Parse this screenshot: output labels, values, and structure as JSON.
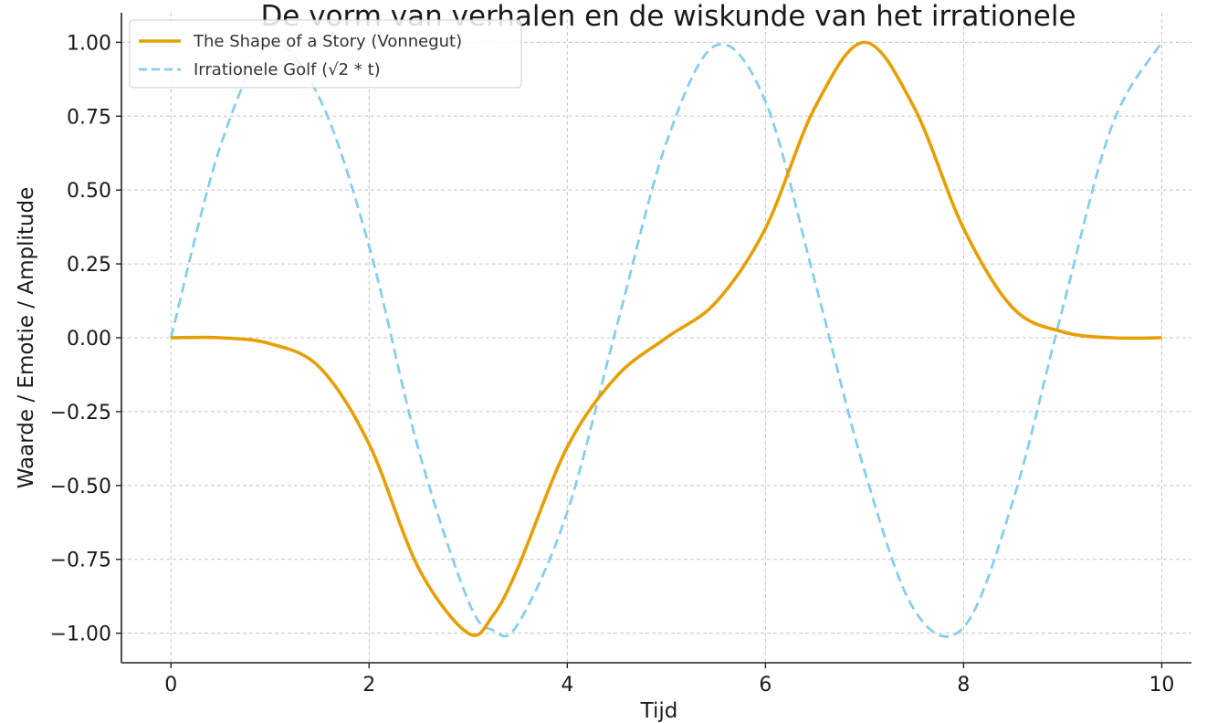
{
  "chart_data": {
    "type": "line",
    "title": "De vorm van verhalen en de wiskunde van het irrationele",
    "xlabel": "Tijd",
    "ylabel": "Waarde / Emotie / Amplitude",
    "xlim": [
      -0.5,
      10.3
    ],
    "ylim": [
      -1.1,
      1.1
    ],
    "xticks": [
      0,
      2,
      4,
      6,
      8,
      10
    ],
    "xtick_labels": [
      "0",
      "2",
      "4",
      "6",
      "8",
      "10"
    ],
    "yticks": [
      -1.0,
      -0.75,
      -0.5,
      -0.25,
      0.0,
      0.25,
      0.5,
      0.75,
      1.0
    ],
    "ytick_labels": [
      "−1.00",
      "−0.75",
      "−0.50",
      "−0.25",
      "0.00",
      "0.25",
      "0.50",
      "0.75",
      "1.00"
    ],
    "grid": true,
    "legend_position": "top-left",
    "x": [
      0,
      0.5,
      1,
      1.5,
      2,
      2.5,
      3,
      3.25,
      3.5,
      4,
      4.5,
      5,
      5.5,
      6,
      6.5,
      7,
      7.5,
      8,
      8.5,
      9,
      9.5,
      10
    ],
    "series": [
      {
        "name": "The Shape of a Story (Vonnegut)",
        "color": "#e69f00",
        "style": "solid",
        "values": [
          0,
          0,
          -0.02,
          -0.1,
          -0.36,
          -0.78,
          -1.0,
          -0.94,
          -0.78,
          -0.37,
          -0.13,
          0.0,
          0.12,
          0.37,
          0.78,
          1.0,
          0.78,
          0.37,
          0.1,
          0.02,
          0,
          0
        ]
      },
      {
        "name": "Irrationele Golf (√2 * t)",
        "color": "#87ceeb",
        "style": "dashed",
        "values": [
          0,
          0.65,
          0.99,
          0.81,
          0.31,
          -0.38,
          -0.89,
          -0.99,
          -0.97,
          -0.59,
          0.04,
          0.66,
          0.99,
          0.8,
          0.19,
          -0.45,
          -0.92,
          -0.98,
          -0.55,
          0.1,
          0.72,
          1.0
        ]
      }
    ]
  }
}
